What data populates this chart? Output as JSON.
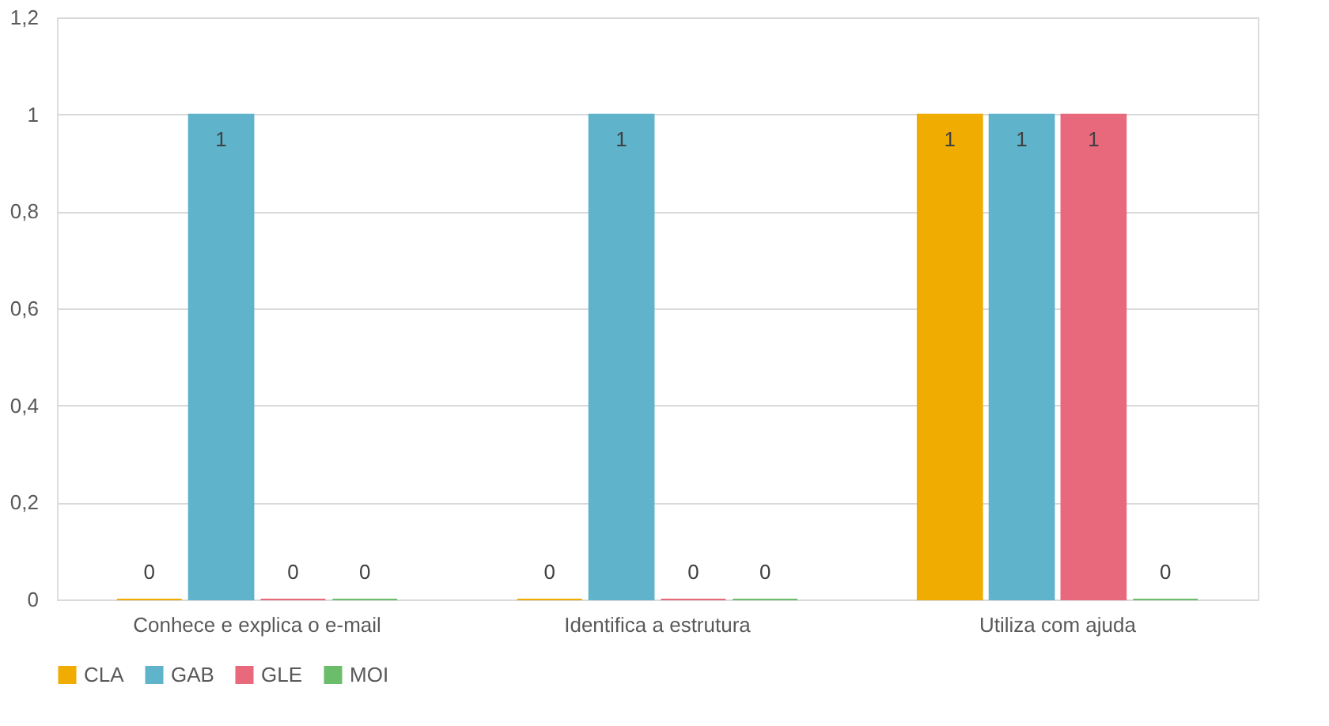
{
  "chart_data": {
    "type": "bar",
    "categories": [
      "Conhece e explica o e-mail",
      "Identifica a estrutura",
      "Utiliza com ajuda"
    ],
    "series": [
      {
        "name": "CLA",
        "color": "#f0ac00",
        "values": [
          0,
          0,
          1
        ]
      },
      {
        "name": "GAB",
        "color": "#5fb3cb",
        "values": [
          1,
          1,
          1
        ]
      },
      {
        "name": "GLE",
        "color": "#e8697c",
        "values": [
          0,
          0,
          1
        ]
      },
      {
        "name": "MOI",
        "color": "#6bbd6b",
        "values": [
          0,
          0,
          0
        ]
      }
    ],
    "ylim": [
      0,
      1.2
    ],
    "yticks": [
      0,
      {
        "value": 0.2,
        "label": "0,2"
      },
      {
        "value": 0.4,
        "label": "0,4"
      },
      {
        "value": 0.6,
        "label": "0,6"
      },
      {
        "value": 0.8,
        "label": "0,8"
      },
      1,
      {
        "value": 1.2,
        "label": "1,2"
      }
    ],
    "grid": "y",
    "legend": "bottom",
    "data_labels": true
  }
}
